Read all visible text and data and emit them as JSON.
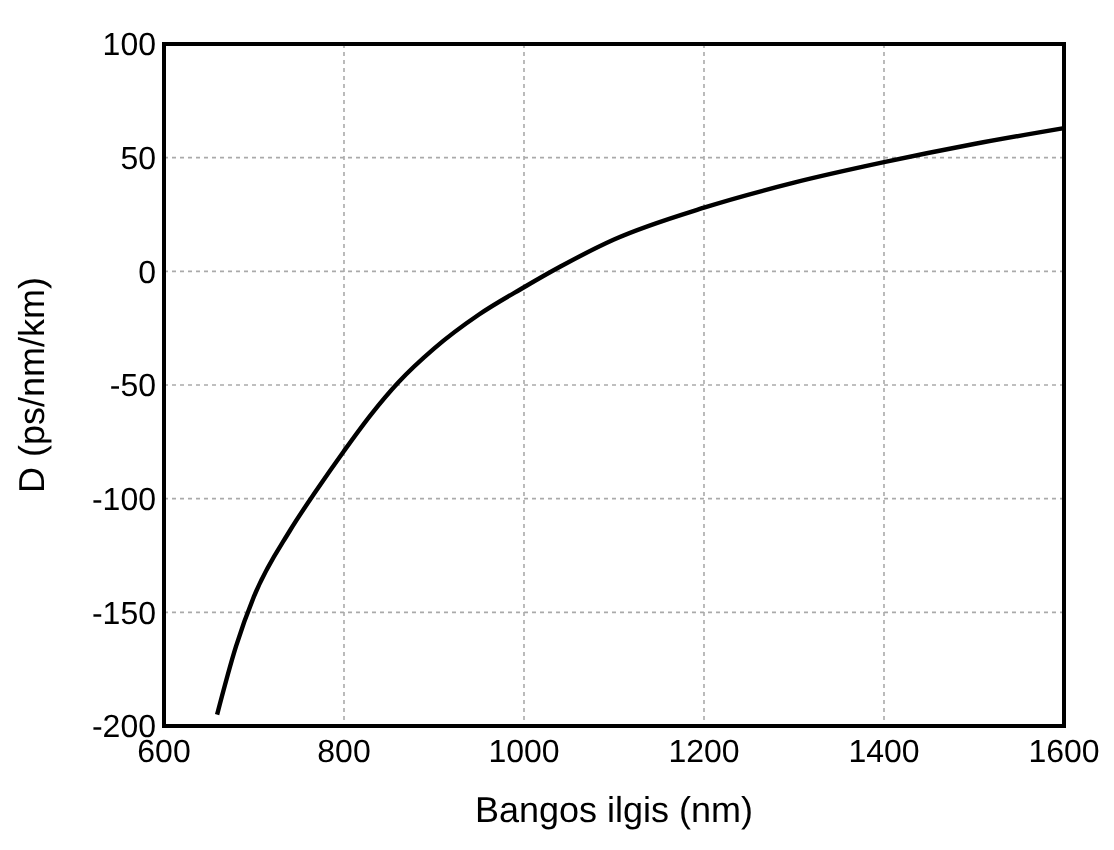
{
  "chart_data": {
    "type": "line",
    "xlabel": "Bangos ilgis (nm)",
    "ylabel": "D (ps/nm/km)",
    "x": [
      659,
      680,
      700,
      740,
      770,
      800,
      830,
      860,
      900,
      950,
      1000,
      1040,
      1100,
      1200,
      1300,
      1400,
      1500,
      1600
    ],
    "series": [
      {
        "color": "#000000",
        "values": [
          -195,
          -165,
          -143,
          -114,
          -96,
          -79,
          -63,
          -49,
          -34,
          -19,
          -7,
          2,
          14,
          28,
          39,
          48,
          56,
          63
        ]
      }
    ],
    "xlim": [
      600,
      1600
    ],
    "xticks": [
      600,
      800,
      1000,
      1200,
      1400,
      1600
    ],
    "ylim": [
      -200,
      100
    ],
    "yticks": [
      -200,
      -150,
      -100,
      -50,
      0,
      50,
      100
    ],
    "grid": true,
    "marker": "none",
    "line_style": "solid"
  }
}
